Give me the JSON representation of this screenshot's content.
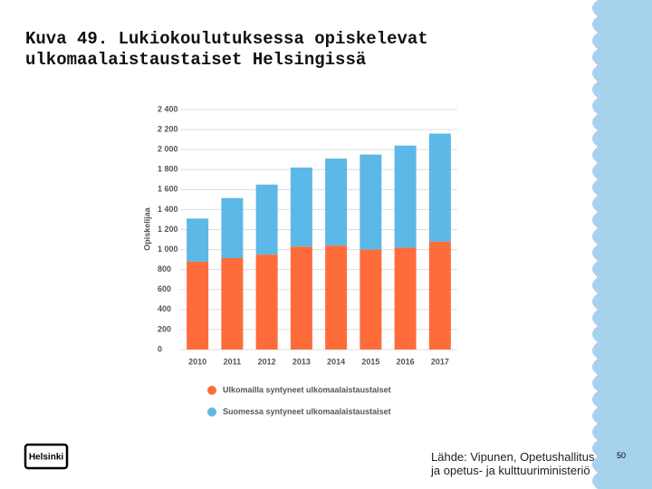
{
  "slide": {
    "title": [
      "Kuva 49. Lukiokoulutuksessa opiskelevat",
      "ulkomaalaistaustaiset Helsingissä"
    ],
    "logo": "Helsinki",
    "source": [
      "Lähde: Vipunen, Opetushallitus",
      "ja opetus- ja kulttuuriministeriö"
    ],
    "page_number": "50"
  },
  "chart_data": {
    "type": "stacked_bar",
    "y_label": "Opiskelijaa",
    "categories": [
      "2010",
      "2011",
      "2012",
      "2013",
      "2014",
      "2015",
      "2016",
      "2017"
    ],
    "series": [
      {
        "name": "Ulkomailla syntyneet ulkomaalaistaustaiset",
        "color": "#fd6c3a",
        "values": [
          880,
          915,
          950,
          1030,
          1040,
          1000,
          1020,
          1080
        ]
      },
      {
        "name": "Suomessa syntyneet ulkomaalaistaustaiset",
        "color": "#5cb8e6",
        "values": [
          430,
          600,
          700,
          790,
          870,
          950,
          1020,
          1080
        ]
      }
    ],
    "ylim": [
      0,
      2400
    ],
    "yticks": [
      0,
      200,
      400,
      600,
      800,
      {
        "value": 1000,
        "label": "1 000"
      },
      {
        "value": 1200,
        "label": "1 200"
      },
      {
        "value": 1400,
        "label": "1 400"
      },
      {
        "value": 1600,
        "label": "1 600"
      },
      {
        "value": 1800,
        "label": "1 800"
      },
      {
        "value": 2000,
        "label": "2 000"
      },
      {
        "value": 2200,
        "label": "2 200"
      },
      {
        "value": 2400,
        "label": "2 400"
      }
    ],
    "grid": true
  }
}
